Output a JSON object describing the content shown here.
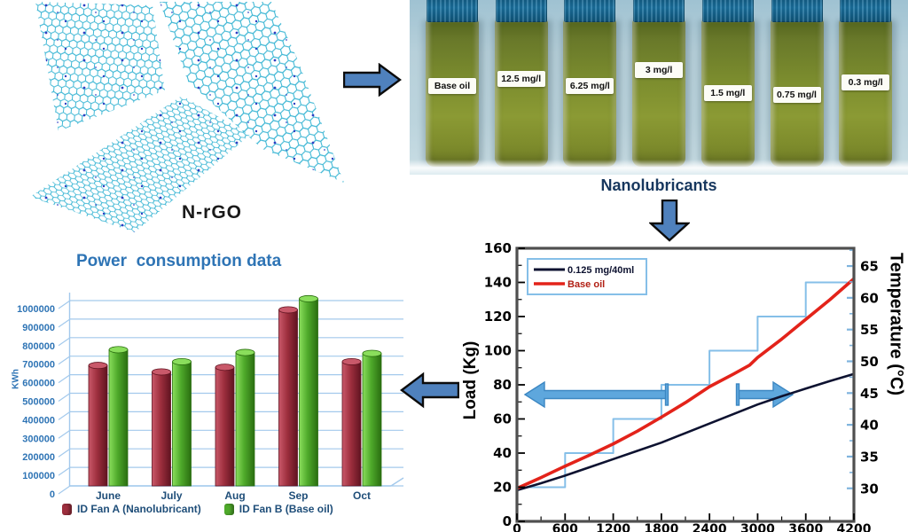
{
  "panels": {
    "graphene": {
      "label": "N-rGO"
    },
    "vials": {
      "caption": "Nanolubricants",
      "labels": [
        "Base oil",
        "12.5 mg/l",
        "6.25 mg/l",
        "3 mg/l",
        "1.5 mg/l",
        "0.75 mg/l",
        "0.3 mg/l"
      ]
    }
  },
  "colors": {
    "block_arrow": "#4f81bd",
    "caption_navy": "#17375e",
    "chart_title_blue": "#2e74b5",
    "axis_text_blue": "#1f4e79",
    "gridline_blue": "#a3c9ec",
    "photo_background": "#b7d0da",
    "vial_cap_blue": "#15638d",
    "oil_green": "#7c8d2e"
  },
  "chart_data": [
    {
      "type": "bar",
      "title": "Power  consumption data",
      "ylabel": "KWh",
      "categories": [
        "June",
        "July",
        "Aug",
        "Sep",
        "Oct"
      ],
      "series": [
        {
          "name": "ID Fan A (Nanolubricant)",
          "color": "#9e2f3e",
          "grad": [
            "#c9596a",
            "#9e2f3e",
            "#601320"
          ],
          "values": [
            650000,
            615000,
            640000,
            950000,
            670000
          ]
        },
        {
          "name": "ID Fan B (Base oil)",
          "color": "#4faa2b",
          "grad": [
            "#8ade5c",
            "#4faa2b",
            "#2a6e10"
          ],
          "values": [
            735000,
            670000,
            720000,
            1010000,
            715000
          ]
        }
      ],
      "ylim": [
        0,
        1000000
      ],
      "ytick_step": 100000,
      "grid": true,
      "legend_position": "bottom"
    },
    {
      "type": "line",
      "x_range": [
        0,
        4200
      ],
      "x_ticks": [
        0,
        600,
        1200,
        1800,
        2400,
        3000,
        3600,
        4200
      ],
      "left_axis": {
        "label": "Load (Kg)",
        "range": [
          0,
          160
        ],
        "tick_step": 20
      },
      "right_axis": {
        "label": "Temperature (°C)",
        "range": [
          24.8,
          67.8
        ],
        "ticks": [
          30,
          35,
          40,
          45,
          50,
          55,
          60,
          65
        ]
      },
      "legend": [
        {
          "label": "0.125 mg/40ml",
          "color": "#0d1230"
        },
        {
          "label": "Base oil",
          "color": "#b22015"
        }
      ],
      "legend_position": "top-left",
      "series": [
        {
          "name": "load-step-profile",
          "axis": "left",
          "color": "#85bfe8",
          "width": 2,
          "points": [
            [
              0,
              20
            ],
            [
              600,
              20
            ],
            [
              600,
              40
            ],
            [
              1200,
              40
            ],
            [
              1200,
              60
            ],
            [
              1800,
              60
            ],
            [
              1800,
              80
            ],
            [
              2400,
              80
            ],
            [
              2400,
              100
            ],
            [
              3000,
              100
            ],
            [
              3000,
              120
            ],
            [
              3600,
              120
            ],
            [
              3600,
              140
            ],
            [
              4120,
              140
            ]
          ]
        },
        {
          "name": "0.125 mg/40ml",
          "axis": "right",
          "color": "#0d1230",
          "width": 2.6,
          "points": [
            [
              0,
              29.7
            ],
            [
              300,
              30.8
            ],
            [
              600,
              32
            ],
            [
              900,
              33.3
            ],
            [
              1200,
              34.6
            ],
            [
              1500,
              35.9
            ],
            [
              1800,
              37.2
            ],
            [
              2100,
              38.7
            ],
            [
              2400,
              40.2
            ],
            [
              2700,
              41.7
            ],
            [
              3000,
              43.2
            ],
            [
              3300,
              44.5
            ],
            [
              3600,
              45.7
            ],
            [
              3900,
              46.9
            ],
            [
              4200,
              48
            ]
          ]
        },
        {
          "name": "Base oil",
          "axis": "right",
          "color": "#e3231a",
          "width": 3.6,
          "points": [
            [
              0,
              30
            ],
            [
              300,
              31.7
            ],
            [
              600,
              33.5
            ],
            [
              900,
              35.2
            ],
            [
              1200,
              37
            ],
            [
              1500,
              39
            ],
            [
              1800,
              41.2
            ],
            [
              2100,
              43.5
            ],
            [
              2400,
              46
            ],
            [
              2700,
              48
            ],
            [
              2900,
              49.4
            ],
            [
              3000,
              50.6
            ],
            [
              3300,
              53.5
            ],
            [
              3600,
              56.6
            ],
            [
              3900,
              59.7
            ],
            [
              4200,
              63
            ]
          ]
        }
      ]
    }
  ]
}
